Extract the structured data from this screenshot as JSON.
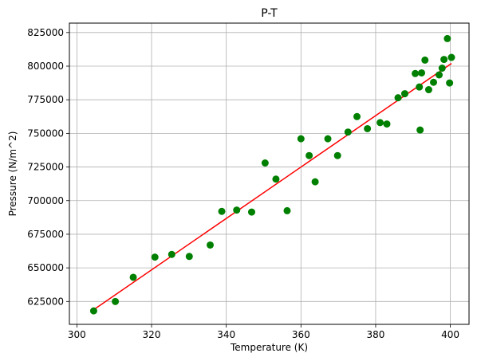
{
  "chart_data": {
    "type": "scatter",
    "title": "P-T",
    "xlabel": "Temperature (K)",
    "ylabel": "Pressure (N/m^2)",
    "xlim": [
      298,
      405
    ],
    "ylim": [
      608000,
      832000
    ],
    "xticks": [
      300,
      320,
      340,
      360,
      380,
      400
    ],
    "yticks": [
      625000,
      650000,
      675000,
      700000,
      725000,
      750000,
      775000,
      800000,
      825000
    ],
    "grid": true,
    "colors": {
      "points": "#008000",
      "fit": "#ff0000",
      "grid": "#b0b0b0"
    },
    "points": [
      {
        "x": 304.5,
        "y": 618000
      },
      {
        "x": 310.3,
        "y": 625000
      },
      {
        "x": 315.1,
        "y": 643000
      },
      {
        "x": 320.9,
        "y": 658000
      },
      {
        "x": 325.4,
        "y": 660000
      },
      {
        "x": 330.1,
        "y": 658500
      },
      {
        "x": 335.7,
        "y": 667000
      },
      {
        "x": 338.8,
        "y": 692000
      },
      {
        "x": 342.8,
        "y": 693000
      },
      {
        "x": 346.8,
        "y": 691500
      },
      {
        "x": 350.4,
        "y": 728000
      },
      {
        "x": 353.3,
        "y": 716000
      },
      {
        "x": 356.3,
        "y": 692500
      },
      {
        "x": 360.0,
        "y": 746000
      },
      {
        "x": 362.2,
        "y": 733500
      },
      {
        "x": 363.8,
        "y": 714000
      },
      {
        "x": 367.2,
        "y": 746000
      },
      {
        "x": 369.8,
        "y": 733500
      },
      {
        "x": 372.6,
        "y": 751000
      },
      {
        "x": 375.0,
        "y": 762500
      },
      {
        "x": 377.8,
        "y": 753500
      },
      {
        "x": 381.2,
        "y": 758000
      },
      {
        "x": 383.0,
        "y": 757000
      },
      {
        "x": 386.0,
        "y": 776500
      },
      {
        "x": 387.8,
        "y": 779500
      },
      {
        "x": 390.6,
        "y": 794500
      },
      {
        "x": 391.7,
        "y": 784500
      },
      {
        "x": 391.9,
        "y": 752500
      },
      {
        "x": 392.3,
        "y": 795000
      },
      {
        "x": 393.2,
        "y": 804500
      },
      {
        "x": 394.2,
        "y": 782500
      },
      {
        "x": 395.5,
        "y": 788000
      },
      {
        "x": 397.0,
        "y": 793500
      },
      {
        "x": 397.8,
        "y": 798500
      },
      {
        "x": 398.3,
        "y": 805000
      },
      {
        "x": 399.2,
        "y": 820500
      },
      {
        "x": 399.8,
        "y": 787500
      },
      {
        "x": 400.3,
        "y": 806500
      }
    ],
    "fit_line": {
      "x": [
        304.3,
        400.3
      ],
      "y": [
        618500,
        802000
      ]
    }
  }
}
